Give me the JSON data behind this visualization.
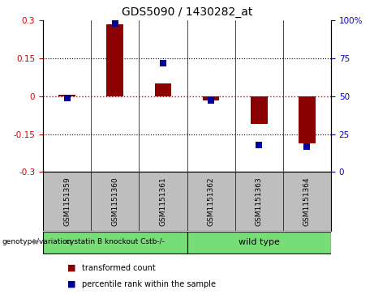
{
  "title": "GDS5090 / 1430282_at",
  "samples": [
    "GSM1151359",
    "GSM1151360",
    "GSM1151361",
    "GSM1151362",
    "GSM1151363",
    "GSM1151364"
  ],
  "bar_values": [
    0.005,
    0.285,
    0.05,
    -0.015,
    -0.11,
    -0.185
  ],
  "percentile_values": [
    49,
    98,
    72,
    47,
    18,
    17
  ],
  "ylim_left": [
    -0.3,
    0.3
  ],
  "ylim_right": [
    0,
    100
  ],
  "yticks_left": [
    -0.3,
    -0.15,
    0,
    0.15,
    0.3
  ],
  "yticks_right": [
    0,
    25,
    50,
    75,
    100
  ],
  "bar_color": "#8B0000",
  "dot_color": "#000099",
  "hline_color": "#CC0000",
  "grid_color": "black",
  "group1_label": "cystatin B knockout Cstb-/-",
  "group2_label": "wild type",
  "group_color": "#77DD77",
  "group1_indices": [
    0,
    1,
    2
  ],
  "group2_indices": [
    3,
    4,
    5
  ],
  "genotype_label": "genotype/variation",
  "legend_bar_label": "transformed count",
  "legend_dot_label": "percentile rank within the sample",
  "bar_width": 0.35,
  "dot_size": 35,
  "plot_bg": "#FFFFFF",
  "tick_area_bg": "#BEBEBE",
  "title_fontsize": 10,
  "left_tick_color": "#CC0000",
  "right_tick_color": "#0000CC",
  "tick_fontsize": 7.5,
  "sample_fontsize": 6.5,
  "legend_fontsize": 7,
  "group_fontsize1": 6.5,
  "group_fontsize2": 8
}
